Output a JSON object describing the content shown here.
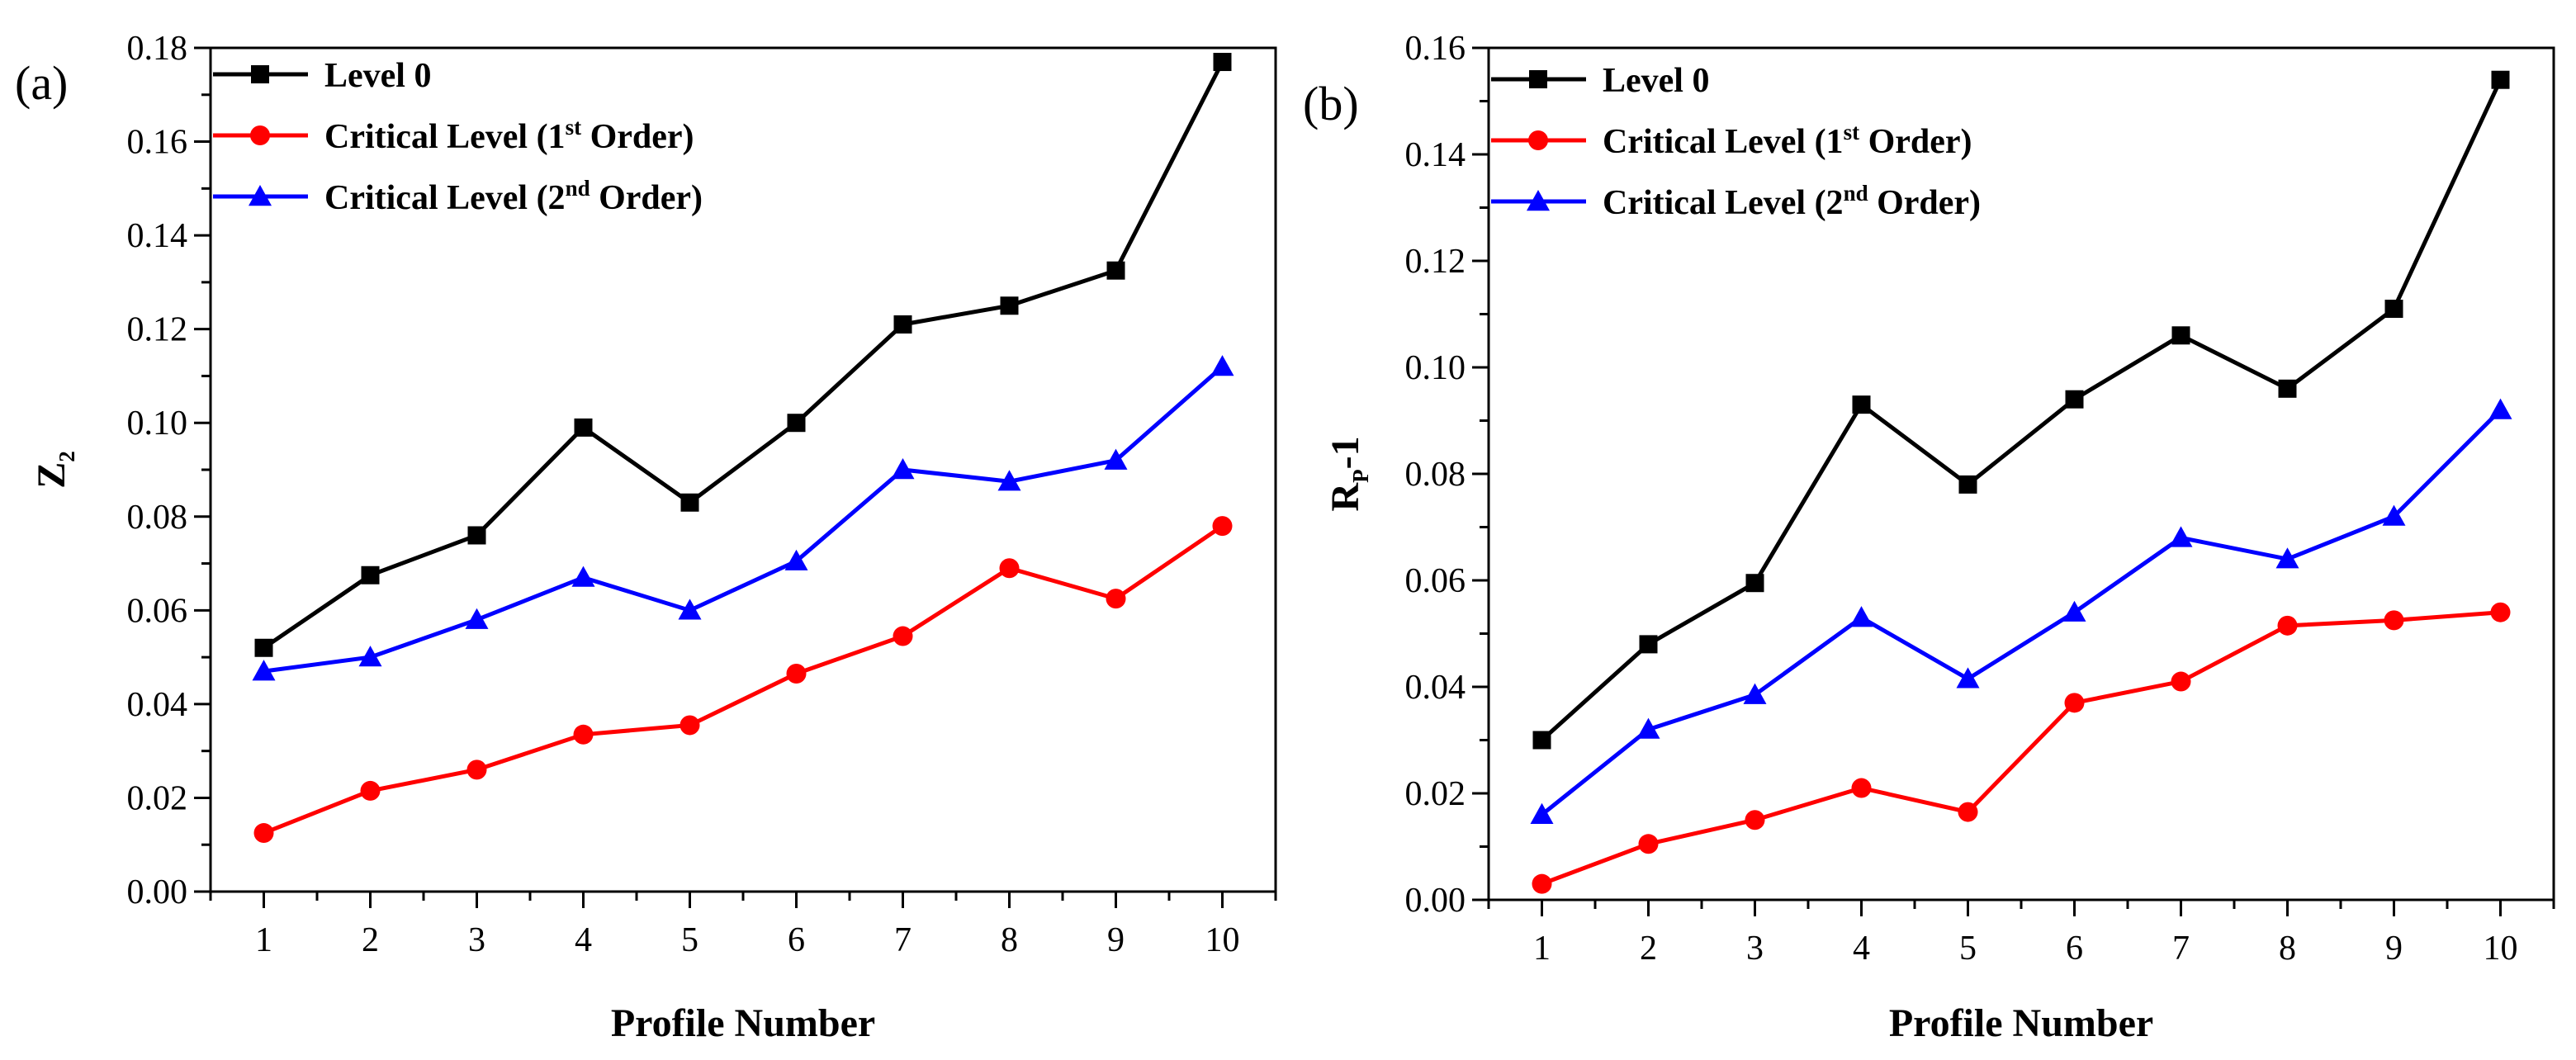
{
  "figure": {
    "panels": [
      {
        "panel_label": "(a)",
        "ylabel_main": "Z",
        "ylabel_sub": "2",
        "xlabel": "Profile Number"
      },
      {
        "panel_label": "(b)",
        "ylabel_main": "R",
        "ylabel_sub": "P",
        "ylabel_tail": "-1",
        "xlabel": "Profile Number"
      }
    ],
    "legend": [
      {
        "label": "Level 0",
        "sup": "",
        "suffix": ""
      },
      {
        "label": "Critical Level (1",
        "sup": "st",
        "suffix": " Order)"
      },
      {
        "label": "Critical Level (2",
        "sup": "nd",
        "suffix": " Order)"
      }
    ]
  },
  "chart_data": [
    {
      "type": "line",
      "panel": "(a)",
      "xlabel": "Profile Number",
      "ylabel": "Z2",
      "x": [
        1,
        2,
        3,
        4,
        5,
        6,
        7,
        8,
        9,
        10
      ],
      "xlim": [
        0.5,
        10.5
      ],
      "ylim": [
        0.0,
        0.18
      ],
      "yticks": [
        0.0,
        0.02,
        0.04,
        0.06,
        0.08,
        0.1,
        0.12,
        0.14,
        0.16,
        0.18
      ],
      "grid": false,
      "legend_position": "top-left",
      "series": [
        {
          "name": "Level 0",
          "color": "#000000",
          "marker": "square",
          "values": [
            0.052,
            0.0675,
            0.076,
            0.099,
            0.083,
            0.1,
            0.121,
            0.125,
            0.1325,
            0.177
          ]
        },
        {
          "name": "Critical Level (1st Order)",
          "color": "#ff0000",
          "marker": "circle",
          "values": [
            0.0125,
            0.0215,
            0.026,
            0.0335,
            0.0355,
            0.0465,
            0.0545,
            0.069,
            0.0625,
            0.078
          ]
        },
        {
          "name": "Critical Level (2nd Order)",
          "color": "#0000ff",
          "marker": "triangle",
          "values": [
            0.047,
            0.05,
            0.058,
            0.067,
            0.06,
            0.0705,
            0.09,
            0.0875,
            0.092,
            0.112
          ]
        }
      ]
    },
    {
      "type": "line",
      "panel": "(b)",
      "xlabel": "Profile Number",
      "ylabel": "RP-1",
      "x": [
        1,
        2,
        3,
        4,
        5,
        6,
        7,
        8,
        9,
        10
      ],
      "xlim": [
        0.5,
        10.5
      ],
      "ylim": [
        0.0,
        0.16
      ],
      "yticks": [
        0.0,
        0.02,
        0.04,
        0.06,
        0.08,
        0.1,
        0.12,
        0.14,
        0.16
      ],
      "grid": false,
      "legend_position": "top-left",
      "series": [
        {
          "name": "Level 0",
          "color": "#000000",
          "marker": "square",
          "values": [
            0.03,
            0.048,
            0.0595,
            0.093,
            0.078,
            0.094,
            0.106,
            0.096,
            0.111,
            0.154
          ]
        },
        {
          "name": "Critical Level (1st Order)",
          "color": "#ff0000",
          "marker": "circle",
          "values": [
            0.003,
            0.0105,
            0.015,
            0.021,
            0.0165,
            0.037,
            0.041,
            0.0515,
            0.0525,
            0.054
          ]
        },
        {
          "name": "Critical Level (2nd Order)",
          "color": "#0000ff",
          "marker": "triangle",
          "values": [
            0.016,
            0.032,
            0.0385,
            0.053,
            0.0415,
            0.054,
            0.068,
            0.064,
            0.072,
            0.092
          ]
        }
      ]
    }
  ]
}
